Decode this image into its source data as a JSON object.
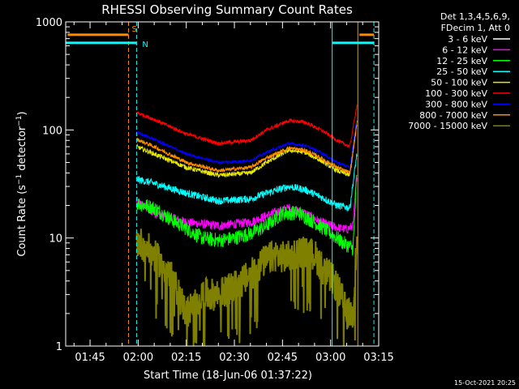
{
  "chart_data": {
    "type": "line",
    "title": "RHESSI Observing Summary Count Rates",
    "xlabel": "Start Time (18-Jun-06 01:37:22)",
    "ylabel": "Count Rate (s⁻¹ detector⁻¹)",
    "ylabel_parts": {
      "main": "Count Rate (s",
      "sup1": "−1",
      "mid": " detector",
      "sup2": "−1",
      "end": ")"
    },
    "yscale": "log",
    "ylim": [
      1,
      1000
    ],
    "xlim_minutes": [
      97.4,
      195.0
    ],
    "x_ticks": [
      {
        "label": "01:45",
        "min": 105
      },
      {
        "label": "02:00",
        "min": 120
      },
      {
        "label": "02:15",
        "min": 135
      },
      {
        "label": "02:30",
        "min": 150
      },
      {
        "label": "02:45",
        "min": 165
      },
      {
        "label": "03:00",
        "min": 180
      },
      {
        "label": "03:15",
        "min": 195
      }
    ],
    "y_ticks": [
      {
        "label": "1",
        "value": 1
      },
      {
        "label": "10",
        "value": 10
      },
      {
        "label": "100",
        "value": 100
      },
      {
        "label": "1000",
        "value": 1000
      }
    ],
    "legend_header": [
      "Det 1,3,4,5,6,9,",
      "FDecim 1, Att 0"
    ],
    "legend_placement": "right",
    "series": [
      {
        "name": "3 - 6 keV",
        "color": "#ffffff",
        "x": [],
        "y": []
      },
      {
        "name": "6 - 12 keV",
        "color": "#ff00ff",
        "x": [
          119.5,
          125,
          135,
          145,
          155,
          162,
          167,
          172,
          177,
          182,
          185,
          187,
          188.2
        ],
        "y": [
          22,
          17,
          14,
          13,
          14,
          17,
          19,
          17,
          14,
          12.5,
          12,
          13,
          40
        ]
      },
      {
        "name": "12 - 25 keV",
        "color": "#00ff00",
        "x": [
          119.5,
          125,
          130,
          140,
          145,
          150,
          155,
          160,
          165,
          170,
          175,
          180,
          184,
          187,
          188.2
        ],
        "y": [
          21,
          19,
          15,
          10,
          9.5,
          10,
          11,
          13,
          17,
          17,
          14,
          11,
          9,
          8,
          40
        ]
      },
      {
        "name": "25 - 50 keV",
        "color": "#00ffff",
        "x": [
          119.5,
          125,
          135,
          145,
          155,
          160,
          167,
          172,
          177,
          182,
          186,
          188.2
        ],
        "y": [
          35,
          32,
          26,
          22,
          23,
          26,
          30,
          28,
          24,
          20,
          19,
          60
        ]
      },
      {
        "name": "50 - 100 keV",
        "color": "#e8e800",
        "x": [
          119.5,
          125,
          135,
          145,
          155,
          160,
          167,
          172,
          177,
          182,
          186,
          188.2
        ],
        "y": [
          70,
          60,
          45,
          38,
          40,
          50,
          65,
          62,
          52,
          42,
          38,
          120
        ]
      },
      {
        "name": "100 - 300 keV",
        "color": "#ff0000",
        "x": [
          119.5,
          125,
          135,
          145,
          155,
          160,
          167,
          172,
          177,
          182,
          186,
          188.2
        ],
        "y": [
          145,
          125,
          92,
          75,
          80,
          100,
          122,
          118,
          100,
          80,
          70,
          170
        ]
      },
      {
        "name": "300 - 800 keV",
        "color": "#0000ff",
        "x": [
          119.5,
          125,
          135,
          145,
          155,
          160,
          167,
          172,
          177,
          182,
          186,
          188.2
        ],
        "y": [
          95,
          82,
          60,
          50,
          52,
          62,
          75,
          72,
          62,
          50,
          45,
          130
        ]
      },
      {
        "name": "800 - 7000 keV",
        "color": "#ff8c00",
        "x": [
          119.5,
          125,
          135,
          145,
          155,
          160,
          167,
          172,
          177,
          182,
          186,
          188.2
        ],
        "y": [
          82,
          70,
          50,
          42,
          45,
          55,
          68,
          65,
          55,
          45,
          40,
          110
        ]
      },
      {
        "name": "7000 - 15000 keV",
        "color": "#808000",
        "x": [
          119.5,
          123,
          128,
          131,
          135,
          140,
          145,
          150,
          155,
          159,
          163,
          166,
          170,
          175,
          178,
          181,
          183,
          185,
          187,
          188.2
        ],
        "y": [
          9.5,
          8,
          5.5,
          4,
          2,
          3,
          3,
          3.5,
          4.5,
          6,
          7,
          6.5,
          7.5,
          7,
          5,
          4,
          3,
          2,
          2,
          10
        ]
      }
    ],
    "markers": [
      {
        "type": "night_shade",
        "start_min": 98.0,
        "end_min": 117.0,
        "level": 760,
        "color": "#ff8c00",
        "label": "S"
      },
      {
        "type": "saa",
        "start_min": 97.4,
        "end_min": 119.5,
        "level": 640,
        "color": "#00ffff",
        "label": "N"
      },
      {
        "type": "saa",
        "start_min": 180.5,
        "end_min": 193.5,
        "level": 640,
        "color": "#00ffff"
      },
      {
        "type": "night_shade",
        "start_min": 189.0,
        "end_min": 193.5,
        "level": 760,
        "color": "#ff8c00"
      }
    ],
    "vlines": [
      {
        "min": 97.4,
        "color": "#00ffff",
        "style": "solid"
      },
      {
        "min": 117.0,
        "color": "#ff8c00",
        "style": "dashed"
      },
      {
        "min": 119.5,
        "color": "#00ffff",
        "style": "dashed"
      },
      {
        "min": 180.5,
        "color": "#00ffff",
        "style": "solid"
      },
      {
        "min": 188.5,
        "color": "#ff8c00",
        "style": "solid"
      },
      {
        "min": 193.5,
        "color": "#00ffff",
        "style": "dashed"
      }
    ],
    "grid": false
  },
  "footer": {
    "timestamp": "15-Oct-2021 20:25"
  }
}
